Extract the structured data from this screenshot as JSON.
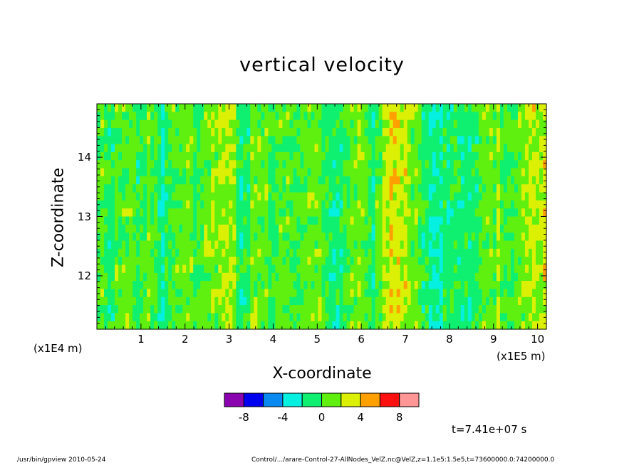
{
  "chart_data": {
    "type": "heatmap",
    "title": "vertical velocity",
    "xlabel": "X-coordinate",
    "ylabel": "Z-coordinate",
    "x_unit_label": "(x1E5 m)",
    "y_unit_label": "(x1E4 m)",
    "xlim": [
      0,
      10.2
    ],
    "ylim": [
      11.1,
      14.9
    ],
    "x_ticks": [
      "1",
      "2",
      "3",
      "4",
      "5",
      "6",
      "7",
      "8",
      "9",
      "10"
    ],
    "y_ticks": [
      "12",
      "13",
      "14"
    ],
    "colorbar": {
      "colors": [
        "#8a05b0",
        "#0000f0",
        "#0a8af0",
        "#05f0e0",
        "#10f070",
        "#60f010",
        "#dcf005",
        "#ffa000",
        "#ff1010",
        "#ff9696"
      ],
      "bounds": [
        -10,
        -8,
        -6,
        -4,
        -2,
        0,
        2,
        4,
        6,
        8,
        10
      ],
      "tick_labels": [
        "-8",
        "-4",
        "0",
        "4",
        "8"
      ]
    },
    "dominant_value_range": [
      -4,
      6
    ],
    "field_columns_x": [
      0.0,
      0.3,
      0.6,
      0.9,
      1.2,
      1.5,
      1.8,
      2.1,
      2.4,
      2.7,
      3.0,
      3.3,
      3.6,
      3.9,
      4.2,
      4.5,
      4.8,
      5.1,
      5.4,
      5.7,
      6.0,
      6.3,
      6.6,
      6.9,
      7.2,
      7.5,
      7.8,
      8.1,
      8.4,
      8.7,
      9.0,
      9.3,
      9.6,
      9.9
    ],
    "field_column_mean": [
      0.6,
      -0.4,
      0.4,
      -0.2,
      1.2,
      -2.2,
      1.0,
      0.2,
      0.6,
      1.5,
      2.2,
      -1.6,
      1.6,
      0.0,
      0.8,
      -0.6,
      0.4,
      0.6,
      -1.0,
      0.2,
      0.8,
      -0.8,
      2.6,
      3.0,
      1.4,
      -1.2,
      -1.8,
      0.0,
      -1.4,
      0.2,
      1.4,
      0.4,
      1.2,
      2.0
    ]
  },
  "time_label": "t=7.41e+07 s",
  "footer_left": "/usr/bin/gpview  2010-05-24",
  "footer_right": "Control/.../arare-Control-27-AllNodes_VelZ.nc@VelZ,z=1.1e5:1.5e5,t=73600000.0:74200000.0"
}
